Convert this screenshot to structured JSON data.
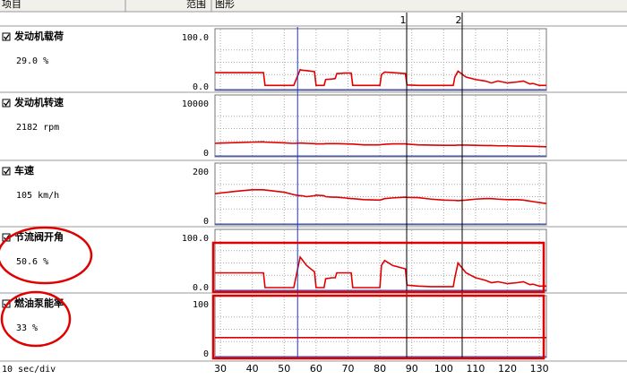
{
  "header": {
    "item": "项目",
    "range": "范围",
    "graph": "图形"
  },
  "line_color": "#e00000",
  "xlim": [
    28.3,
    132.2
  ],
  "xticks": [
    30,
    40,
    50,
    60,
    70,
    80,
    90,
    100,
    110,
    120,
    130
  ],
  "time_scale": "10 sec/div",
  "blue_cursor": 54.2,
  "cursors": [
    {
      "label": "1",
      "x": 88.4
    },
    {
      "label": "2",
      "x": 105.8
    }
  ],
  "x": [
    28.3,
    30,
    35,
    40,
    43.5,
    44,
    50,
    52.5,
    53,
    55,
    55.5,
    57,
    59.5,
    60,
    62.5,
    63,
    65,
    66,
    66.5,
    69,
    71,
    71.5,
    75,
    80,
    80.5,
    81.5,
    84,
    88,
    88.5,
    92,
    96,
    100,
    103,
    103.5,
    104.5,
    107,
    110,
    113,
    115,
    117,
    120,
    123,
    125,
    127,
    128,
    130,
    132.2
  ],
  "rows": [
    {
      "name": "发动机载荷",
      "reading": "29.0 %",
      "range": [
        {
          "value": 0,
          "label": "0.0"
        },
        {
          "value": 100,
          "label": "100.0"
        }
      ],
      "values": [
        29,
        29,
        29,
        29,
        29,
        3,
        3,
        3,
        3,
        35,
        34,
        33,
        31,
        3,
        3,
        15,
        16,
        17,
        27,
        28,
        28,
        3,
        3,
        3,
        25,
        30,
        29,
        27,
        4,
        3,
        3,
        3,
        3,
        20,
        32,
        20,
        15,
        12,
        8,
        12,
        8,
        10,
        12,
        6,
        7,
        3,
        3
      ]
    },
    {
      "name": "发动机转速",
      "reading": "2182 rpm",
      "range": [
        0,
        10000
      ],
      "values": [
        2000,
        2050,
        2150,
        2250,
        2300,
        2250,
        2100,
        2000,
        2000,
        2050,
        2050,
        2000,
        1950,
        1900,
        1900,
        1950,
        1950,
        1950,
        1950,
        1900,
        1850,
        1850,
        1700,
        1700,
        1750,
        1800,
        1900,
        1900,
        1850,
        1700,
        1650,
        1600,
        1600,
        1600,
        1650,
        1650,
        1600,
        1550,
        1550,
        1500,
        1500,
        1450,
        1450,
        1400,
        1400,
        1350,
        1300
      ]
    },
    {
      "name": "车速",
      "reading": "105 km/h",
      "range": [
        0,
        200
      ],
      "values": [
        112,
        115,
        122,
        128,
        128,
        127,
        118,
        110,
        108,
        104,
        104,
        100,
        104,
        106,
        104,
        100,
        98,
        98,
        98,
        95,
        92,
        92,
        88,
        86,
        88,
        92,
        95,
        98,
        97,
        96,
        90,
        86,
        85,
        85,
        84,
        86,
        90,
        92,
        92,
        90,
        88,
        88,
        86,
        82,
        80,
        76,
        72
      ]
    },
    {
      "name": "节流阀开角",
      "reading": "50.6 %",
      "range": [
        {
          "value": 0,
          "label": "0.0"
        },
        {
          "value": 100,
          "label": "100.0"
        }
      ],
      "values": [
        30,
        30,
        30,
        30,
        30,
        0,
        0,
        0,
        0,
        62,
        58,
        45,
        32,
        0,
        0,
        18,
        20,
        20,
        30,
        30,
        30,
        0,
        0,
        0,
        45,
        55,
        45,
        38,
        5,
        3,
        2,
        2,
        2,
        20,
        50,
        30,
        20,
        15,
        10,
        12,
        8,
        10,
        12,
        6,
        7,
        3,
        3
      ]
    },
    {
      "name": "燃油泵能率",
      "reading": "33 %",
      "range": [
        0,
        100
      ],
      "x": [
        28.3,
        132.2
      ],
      "values": [
        33,
        33
      ]
    }
  ]
}
